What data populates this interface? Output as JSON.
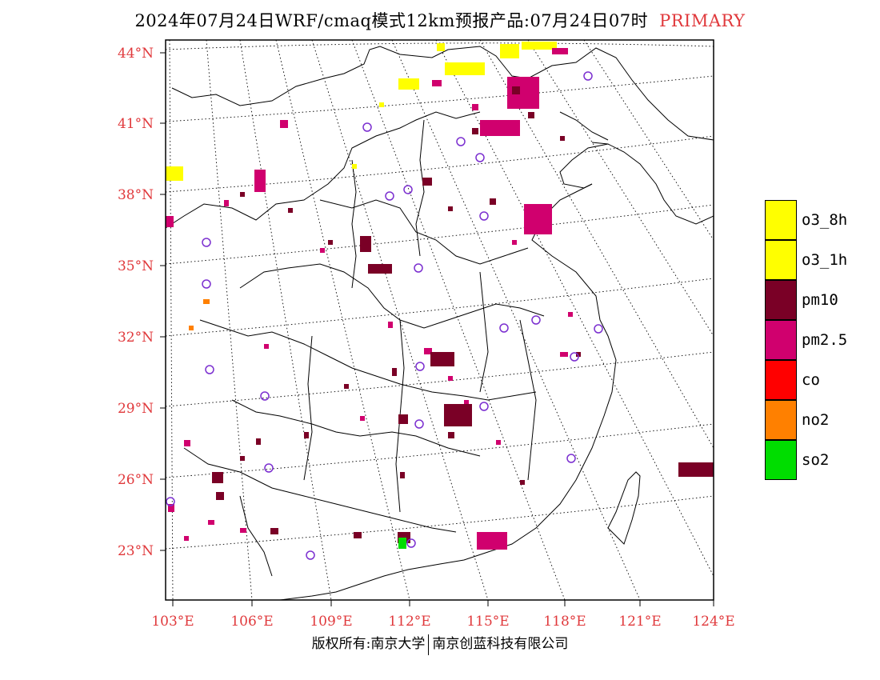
{
  "title": {
    "main": "2024年07月24日WRF/cmaq模式12km预报产品:07月24日07时",
    "tag": "PRIMARY",
    "tag_color": "#e0393c"
  },
  "footer": {
    "left": "版权所有:南京大学",
    "right": "南京创蓝科技有限公司"
  },
  "map": {
    "lat_labels": [
      "44°N",
      "41°N",
      "38°N",
      "35°N",
      "32°N",
      "29°N",
      "26°N",
      "23°N"
    ],
    "lon_labels": [
      "103°E",
      "106°E",
      "109°E",
      "112°E",
      "115°E",
      "118°E",
      "121°E",
      "124°E"
    ],
    "label_color": "#e0393c",
    "station_marker_color": "#7b2fd0"
  },
  "legend": [
    {
      "label": "o3_8h",
      "color": "#ffff00"
    },
    {
      "label": "o3_1h",
      "color": "#ffff00"
    },
    {
      "label": "pm10",
      "color": "#7a0026"
    },
    {
      "label": "pm2.5",
      "color": "#d0006e"
    },
    {
      "label": "co",
      "color": "#ff0000"
    },
    {
      "label": "no2",
      "color": "#ff8000"
    },
    {
      "label": "so2",
      "color": "#00dd00"
    }
  ],
  "pollutant_colors": {
    "o3": "#ffff00",
    "pm10": "#7a0026",
    "pm25": "#d0006e",
    "co": "#ff0000",
    "no2": "#ff8000",
    "so2": "#00dd00"
  }
}
